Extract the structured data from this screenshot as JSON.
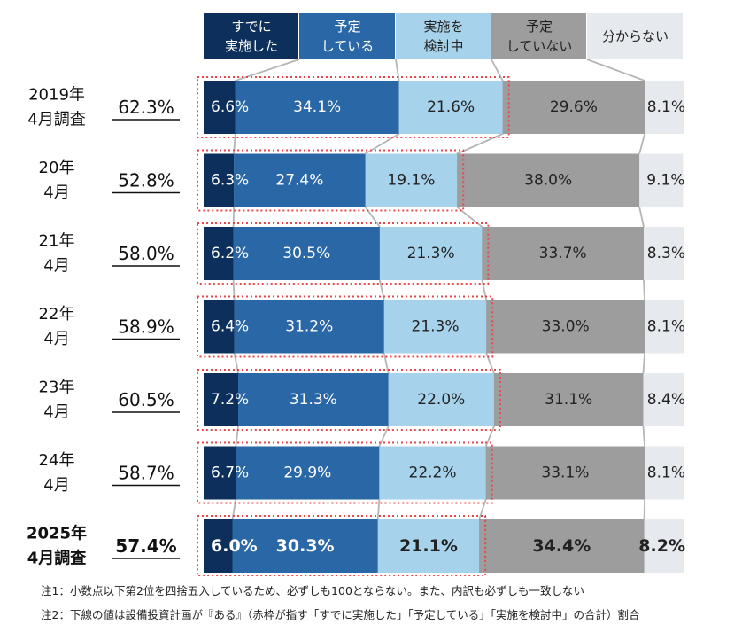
{
  "chart_data": {
    "type": "bar",
    "orientation": "horizontal",
    "stacked": "100%",
    "legend_position": "top",
    "categories": [
      "すでに\n実施した",
      "予定\nしている",
      "実施を\n検討中",
      "予定\nしていない",
      "分からない"
    ],
    "category_colors": [
      "#0d2f5c",
      "#2a67a6",
      "#a6d3eb",
      "#9d9d9d",
      "#e6eaee"
    ],
    "rows": [
      {
        "label": [
          "2019年",
          "4月調査"
        ],
        "total": "62.3%",
        "values": [
          6.6,
          34.1,
          21.6,
          29.6,
          8.1
        ],
        "bold": false
      },
      {
        "label": [
          "20年",
          "4月"
        ],
        "total": "52.8%",
        "values": [
          6.3,
          27.4,
          19.1,
          38.0,
          9.1
        ],
        "bold": false
      },
      {
        "label": [
          "21年",
          "4月"
        ],
        "total": "58.0%",
        "values": [
          6.2,
          30.5,
          21.3,
          33.7,
          8.3
        ],
        "bold": false
      },
      {
        "label": [
          "22年",
          "4月"
        ],
        "total": "58.9%",
        "values": [
          6.4,
          31.2,
          21.3,
          33.0,
          8.1
        ],
        "bold": false
      },
      {
        "label": [
          "23年",
          "4月"
        ],
        "total": "60.5%",
        "values": [
          7.2,
          31.3,
          22.0,
          31.1,
          8.4
        ],
        "bold": false
      },
      {
        "label": [
          "24年",
          "4月"
        ],
        "total": "58.7%",
        "values": [
          6.7,
          29.9,
          22.2,
          33.1,
          8.1
        ],
        "bold": false
      },
      {
        "label": [
          "2025年",
          "4月調査"
        ],
        "total": "57.4%",
        "values": [
          6.0,
          30.3,
          21.1,
          34.4,
          8.2
        ],
        "bold": true
      }
    ],
    "highlight_box_color": "#e8474c",
    "connector_color": "#b5b5b5"
  },
  "notes": [
    "注1：小数点以下第2位を四捨五入しているため、必ずしも100とならない。また、内訳も必ずしも一致しない",
    "注2：下線の値は設備投資計画が『ある』（赤枠が指す「すでに実施した」「予定している」「実施を検討中」の合計）割合"
  ]
}
